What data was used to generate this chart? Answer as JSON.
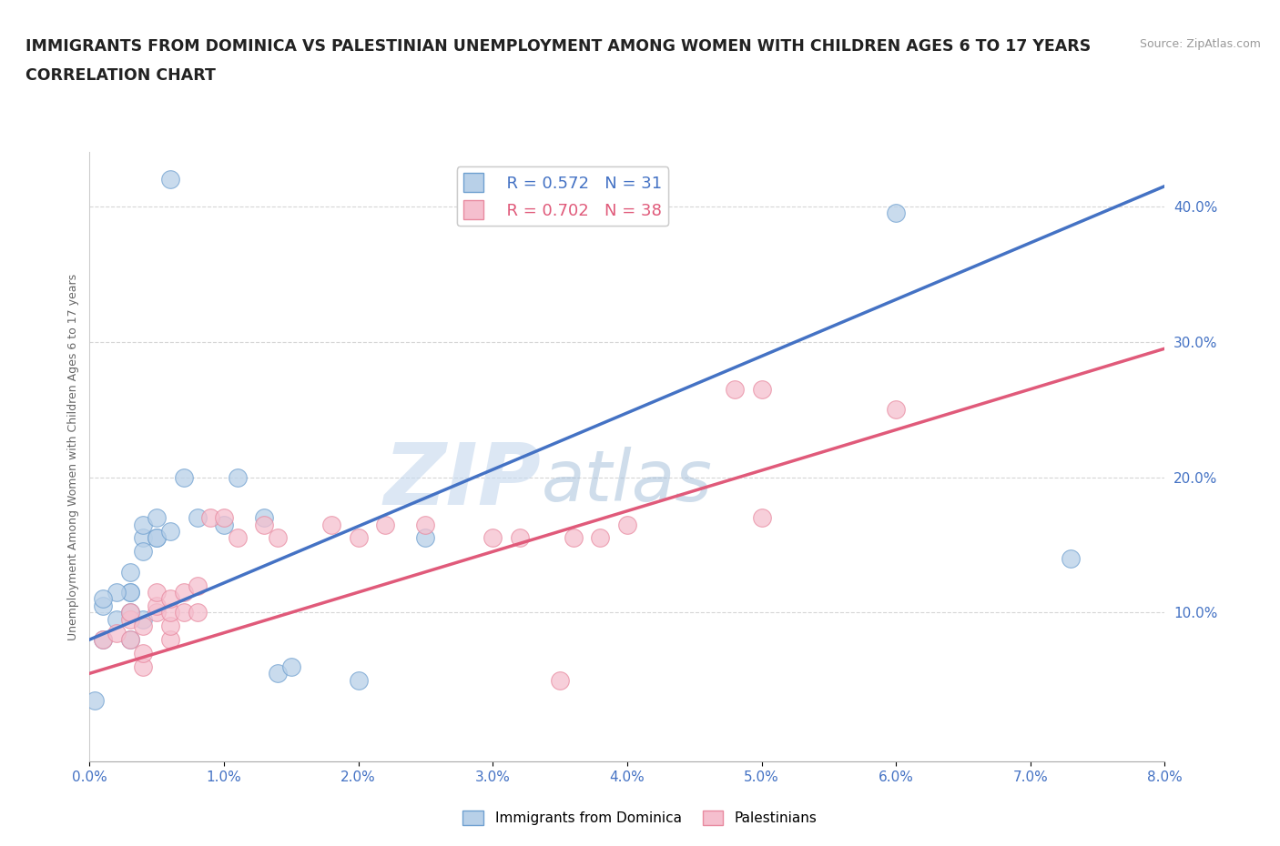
{
  "title_line1": "IMMIGRANTS FROM DOMINICA VS PALESTINIAN UNEMPLOYMENT AMONG WOMEN WITH CHILDREN AGES 6 TO 17 YEARS",
  "title_line2": "CORRELATION CHART",
  "source_text": "Source: ZipAtlas.com",
  "ylabel": "Unemployment Among Women with Children Ages 6 to 17 years",
  "xlim": [
    0.0,
    0.08
  ],
  "ylim": [
    -0.01,
    0.44
  ],
  "yticks": [
    0.1,
    0.2,
    0.3,
    0.4
  ],
  "xticks": [
    0.0,
    0.01,
    0.02,
    0.03,
    0.04,
    0.05,
    0.06,
    0.07,
    0.08
  ],
  "blue_R": 0.572,
  "blue_N": 31,
  "pink_R": 0.702,
  "pink_N": 38,
  "blue_color": "#b8d0e8",
  "blue_edge_color": "#6fa0d0",
  "blue_line_color": "#4472c4",
  "pink_color": "#f5bfce",
  "pink_edge_color": "#e88aa0",
  "pink_line_color": "#e05a7a",
  "watermark_zip": "ZIP",
  "watermark_atlas": "atlas",
  "blue_scatter_x": [
    0.006,
    0.0004,
    0.003,
    0.003,
    0.004,
    0.004,
    0.005,
    0.004,
    0.003,
    0.002,
    0.001,
    0.001,
    0.001,
    0.002,
    0.003,
    0.003,
    0.004,
    0.005,
    0.005,
    0.006,
    0.007,
    0.008,
    0.01,
    0.011,
    0.013,
    0.014,
    0.015,
    0.02,
    0.025,
    0.06,
    0.073
  ],
  "blue_scatter_y": [
    0.42,
    0.035,
    0.13,
    0.115,
    0.155,
    0.165,
    0.155,
    0.145,
    0.115,
    0.115,
    0.105,
    0.11,
    0.08,
    0.095,
    0.08,
    0.1,
    0.095,
    0.17,
    0.155,
    0.16,
    0.2,
    0.17,
    0.165,
    0.2,
    0.17,
    0.055,
    0.06,
    0.05,
    0.155,
    0.395,
    0.14
  ],
  "pink_scatter_x": [
    0.001,
    0.002,
    0.003,
    0.003,
    0.003,
    0.004,
    0.004,
    0.004,
    0.005,
    0.005,
    0.005,
    0.006,
    0.006,
    0.006,
    0.006,
    0.007,
    0.007,
    0.008,
    0.008,
    0.009,
    0.01,
    0.011,
    0.013,
    0.014,
    0.018,
    0.02,
    0.022,
    0.025,
    0.03,
    0.032,
    0.035,
    0.036,
    0.038,
    0.04,
    0.048,
    0.05,
    0.05,
    0.06
  ],
  "pink_scatter_y": [
    0.08,
    0.085,
    0.08,
    0.095,
    0.1,
    0.06,
    0.07,
    0.09,
    0.1,
    0.105,
    0.115,
    0.08,
    0.09,
    0.1,
    0.11,
    0.1,
    0.115,
    0.1,
    0.12,
    0.17,
    0.17,
    0.155,
    0.165,
    0.155,
    0.165,
    0.155,
    0.165,
    0.165,
    0.155,
    0.155,
    0.05,
    0.155,
    0.155,
    0.165,
    0.265,
    0.265,
    0.17,
    0.25
  ],
  "blue_trend_x0": 0.0,
  "blue_trend_x1": 0.08,
  "blue_trend_y0": 0.08,
  "blue_trend_y1": 0.415,
  "pink_trend_x0": 0.0,
  "pink_trend_x1": 0.08,
  "pink_trend_y0": 0.055,
  "pink_trend_y1": 0.295,
  "background_color": "#ffffff",
  "grid_color": "#cccccc",
  "title_fontsize": 12.5,
  "tick_fontsize": 11,
  "legend_fontsize": 13
}
